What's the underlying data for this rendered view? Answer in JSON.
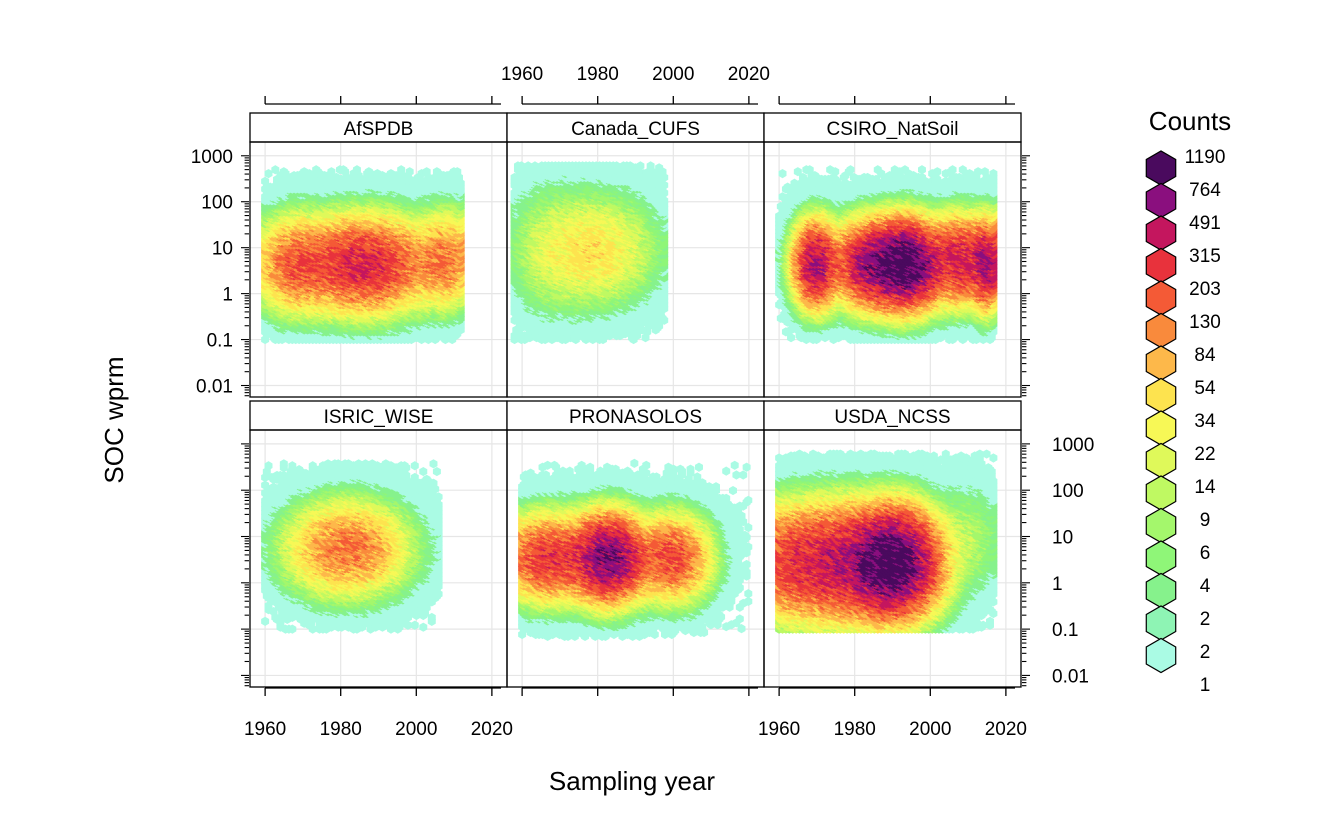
{
  "chart_data": {
    "type": "hexbin",
    "xlabel": "Sampling year",
    "ylabel": "SOC wprm",
    "x_ticks": [
      1960,
      1980,
      2000,
      2020
    ],
    "xlim": [
      1956,
      2024
    ],
    "y_ticks": [
      0.01,
      0.1,
      1,
      10,
      100,
      1000
    ],
    "y_tick_labels": [
      "0.01",
      "0.1",
      "1",
      "10",
      "100",
      "1000"
    ],
    "ylim_log10": [
      -2.25,
      3.3
    ],
    "y_scale": "log",
    "grid": true,
    "legend": {
      "title": "Counts",
      "position": "right",
      "labels": [
        "1190",
        "764",
        "491",
        "315",
        "203",
        "130",
        "84",
        "54",
        "34",
        "22",
        "14",
        "9",
        "6",
        "4",
        "2",
        "2",
        "1"
      ],
      "colors": [
        "#4a0a5e",
        "#8a0f7e",
        "#c4165e",
        "#e8323c",
        "#f45a36",
        "#f98a3c",
        "#fdb84a",
        "#fde34f",
        "#f7f856",
        "#dff95a",
        "#bff962",
        "#a4f76c",
        "#8ff678",
        "#86f28c",
        "#8ef4b4",
        "#aafbe4"
      ]
    },
    "panels": [
      {
        "name": "AfSPDB",
        "x_range": [
          1960,
          2012
        ],
        "y_range_log10": [
          -1,
          2.7
        ],
        "clusters": [
          {
            "x": 1986,
            "y": 0.7,
            "sx": 9,
            "sy": 0.5,
            "peak": 315
          },
          {
            "x": 1968,
            "y": 0.7,
            "sx": 5,
            "sy": 0.5,
            "peak": 150
          },
          {
            "x": 2008,
            "y": 0.8,
            "sx": 4,
            "sy": 0.5,
            "peak": 120
          }
        ]
      },
      {
        "name": "Canada_CUFS",
        "x_range": [
          1958,
          1998
        ],
        "y_range_log10": [
          -1,
          2.8
        ],
        "clusters": [
          {
            "x": 1980,
            "y": 1.0,
            "sx": 8,
            "sy": 0.6,
            "peak": 40
          },
          {
            "x": 1968,
            "y": 1.0,
            "sx": 6,
            "sy": 0.7,
            "peak": 14
          }
        ]
      },
      {
        "name": "CSIRO_NatSoil",
        "x_range": [
          1960,
          2017
        ],
        "y_range_log10": [
          -1,
          2.7
        ],
        "clusters": [
          {
            "x": 1993,
            "y": 0.7,
            "sx": 5,
            "sy": 0.45,
            "peak": 1190
          },
          {
            "x": 1970,
            "y": 0.7,
            "sx": 3,
            "sy": 0.45,
            "peak": 500
          },
          {
            "x": 1983,
            "y": 0.7,
            "sx": 4,
            "sy": 0.45,
            "peak": 400
          },
          {
            "x": 2008,
            "y": 0.8,
            "sx": 4,
            "sy": 0.45,
            "peak": 350
          },
          {
            "x": 2015,
            "y": 0.7,
            "sx": 2,
            "sy": 0.45,
            "peak": 500
          }
        ]
      },
      {
        "name": "ISRIC_WISE",
        "x_range": [
          1960,
          2006
        ],
        "y_range_log10": [
          -1,
          2.6
        ],
        "clusters": [
          {
            "x": 1982,
            "y": 0.8,
            "sx": 8,
            "sy": 0.5,
            "peak": 130
          }
        ]
      },
      {
        "name": "PRONASOLOS",
        "x_range": [
          1960,
          2020
        ],
        "y_range_log10": [
          -1.2,
          2.6
        ],
        "clusters": [
          {
            "x": 1983,
            "y": 0.6,
            "sx": 5,
            "sy": 0.45,
            "peak": 700
          },
          {
            "x": 1967,
            "y": 0.6,
            "sx": 6,
            "sy": 0.45,
            "peak": 250
          },
          {
            "x": 2000,
            "y": 0.6,
            "sx": 5,
            "sy": 0.45,
            "peak": 200
          }
        ]
      },
      {
        "name": "USDA_NCSS",
        "x_range": [
          1960,
          2017
        ],
        "y_range_log10": [
          -1,
          2.9
        ],
        "clusters": [
          {
            "x": 1990,
            "y": 0.5,
            "sx": 6,
            "sy": 0.55,
            "peak": 1190
          },
          {
            "x": 1965,
            "y": 0.5,
            "sx": 7,
            "sy": 0.6,
            "peak": 250
          },
          {
            "x": 1977,
            "y": 0.5,
            "sx": 6,
            "sy": 0.6,
            "peak": 300
          },
          {
            "x": 2010,
            "y": 1.0,
            "sx": 5,
            "sy": 0.6,
            "peak": 10
          }
        ]
      }
    ]
  }
}
